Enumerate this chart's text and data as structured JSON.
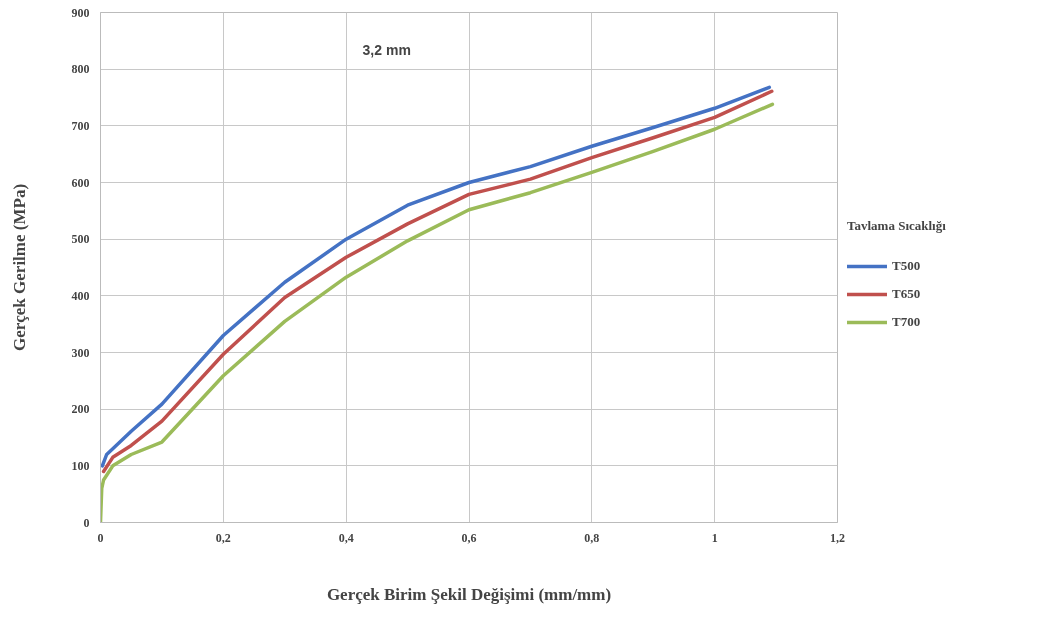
{
  "chart_data": {
    "type": "line",
    "xlabel": "Gerçek Birim Şekil Değişimi (mm/mm)",
    "ylabel": "Gerçek Gerilme (MPa)",
    "legend_title": "Tavlama Sıcaklığı",
    "annotations": [
      "3,2 mm"
    ],
    "xlim": [
      0,
      1.2
    ],
    "ylim": [
      0,
      900
    ],
    "xticks": [
      0,
      {
        "value": 0.2,
        "label": "0,2"
      },
      {
        "value": 0.4,
        "label": "0,4"
      },
      {
        "value": 0.6,
        "label": "0,6"
      },
      {
        "value": 0.8,
        "label": "0,8"
      },
      1,
      {
        "value": 1.2,
        "label": "1,2"
      }
    ],
    "yticks": [
      0,
      100,
      200,
      300,
      400,
      500,
      600,
      700,
      800,
      900
    ],
    "grid": true,
    "legend": "right",
    "marker": "none",
    "line_style": "solid",
    "series": [
      {
        "name": "T500",
        "color": "#4472c4",
        "x": [
          0.003,
          0.01,
          0.02,
          0.05,
          0.1,
          0.2,
          0.3,
          0.4,
          0.5,
          0.6,
          0.7,
          0.8,
          0.9,
          1.0,
          1.089
        ],
        "values": [
          100,
          120,
          130,
          161,
          209,
          330,
          424,
          500,
          560,
          600,
          628,
          664,
          697,
          731,
          768
        ]
      },
      {
        "name": "T650",
        "color": "#c0504d",
        "x": [
          0.005,
          0.02,
          0.05,
          0.1,
          0.2,
          0.3,
          0.4,
          0.5,
          0.6,
          0.7,
          0.8,
          0.9,
          1.0,
          1.093
        ],
        "values": [
          90,
          115,
          136,
          179,
          297,
          397,
          468,
          527,
          579,
          606,
          644,
          679,
          715,
          761
        ]
      },
      {
        "name": "T700",
        "color": "#9bbb59",
        "x": [
          0,
          0.002,
          0.005,
          0.02,
          0.05,
          0.1,
          0.2,
          0.3,
          0.4,
          0.5,
          0.6,
          0.7,
          0.8,
          0.9,
          1.0,
          1.094
        ],
        "values": [
          0,
          60,
          75,
          100,
          120,
          142,
          259,
          355,
          433,
          497,
          552,
          582,
          618,
          655,
          694,
          738
        ]
      }
    ]
  }
}
